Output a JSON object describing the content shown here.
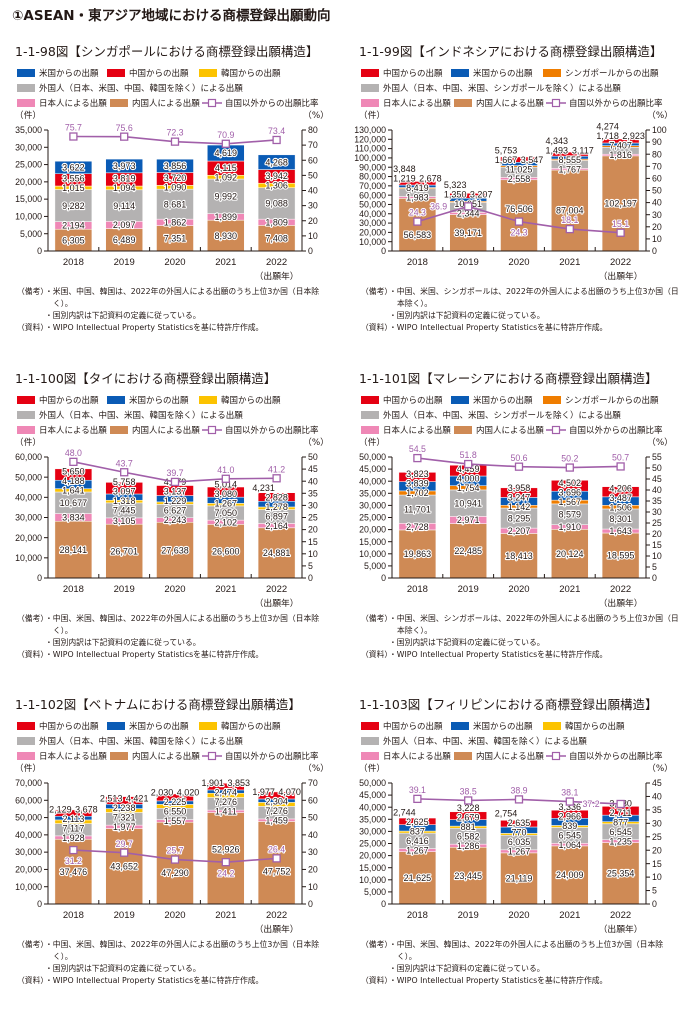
{
  "header": {
    "title": "①ASEAN・東アジア地域における商標登録出願動向"
  },
  "chart_data": [
    {
      "title": "1-1-98図【シンガポールにおける商標登録出願構造】",
      "type": "bar",
      "stacked": true,
      "categories": [
        "2018",
        "2019",
        "2020",
        "2021",
        "2022"
      ],
      "xlabel": "（出願年）",
      "ylabel_left": "（件）",
      "ylabel_right": "（%）",
      "ylim_left": [
        0,
        35000
      ],
      "ytick_step_left": 5000,
      "ylim_right": [
        0,
        80
      ],
      "ytick_step_right": 10,
      "series": [
        {
          "name": "米国からの出願",
          "color": "#0a5bb5",
          "values": [
            3622,
            3973,
            3856,
            4619,
            4268
          ]
        },
        {
          "name": "中国からの出願",
          "color": "#e50012",
          "values": [
            3556,
            3819,
            3720,
            4115,
            3942
          ]
        },
        {
          "name": "韓国からの出願",
          "color": "#fcc300",
          "values": [
            1015,
            1094,
            1090,
            1092,
            1306
          ]
        },
        {
          "name": "外国人（日本、米国、中国、韓国を除く）による出願",
          "color": "#b4b2b2",
          "values": [
            9282,
            9114,
            8681,
            9992,
            9088
          ]
        },
        {
          "name": "日本人による出願",
          "color": "#ef88b6",
          "values": [
            2194,
            2097,
            1862,
            1899,
            1809
          ]
        },
        {
          "name": "内国人による出願",
          "color": "#cf8a55",
          "values": [
            6305,
            6489,
            7351,
            8930,
            7408
          ]
        }
      ],
      "line": {
        "name": "自国以外からの出願比率",
        "color": "#a15fa9",
        "axis": "right",
        "values": [
          75.7,
          75.6,
          72.3,
          70.9,
          73.4
        ]
      },
      "legend": "top-left",
      "notes": [
        {
          "prefix": "（備考）",
          "text": "・米国、中国、韓国は、2022年の外国人による出願のうち上位3か国（日本除く）。"
        },
        {
          "prefix": "",
          "text": "・国別内訳は下記資料の定義に従っている。"
        },
        {
          "prefix": "（資料）",
          "text": "・WIPO Intellectual Property Statisticsを基に特許庁作成。"
        }
      ]
    },
    {
      "title": "1-1-99図【インドネシアにおける商標登録出願構造】",
      "type": "bar",
      "stacked": true,
      "categories": [
        "2018",
        "2019",
        "2020",
        "2021",
        "2022"
      ],
      "xlabel": "（出願年）",
      "ylabel_left": "（件）",
      "ylabel_right": "（%）",
      "ylim_left": [
        0,
        130000
      ],
      "ytick_step_left": 10000,
      "ylim_right": [
        0,
        100
      ],
      "ytick_step_right": 10,
      "series": [
        {
          "name": "中国からの出願",
          "color": "#e50012",
          "values": [
            3848,
            5323,
            5753,
            4343,
            4274
          ]
        },
        {
          "name": "米国からの出願",
          "color": "#0a5bb5",
          "values": [
            2678,
            3207,
            3547,
            3117,
            2923
          ]
        },
        {
          "name": "シンガポールからの出願",
          "color": "#ef7d00",
          "values": [
            1219,
            1350,
            1667,
            1493,
            1718
          ]
        },
        {
          "name": "外国人（日本、中国、米国、シンガポールを除く）による出願",
          "color": "#b4b2b2",
          "values": [
            8419,
            10651,
            11025,
            8555,
            7407
          ]
        },
        {
          "name": "日本人による出願",
          "color": "#ef88b6",
          "values": [
            1983,
            2344,
            2558,
            1767,
            1816
          ]
        },
        {
          "name": "内国人による出願",
          "color": "#cf8a55",
          "values": [
            56583,
            39171,
            76506,
            87004,
            102197
          ]
        }
      ],
      "line": {
        "name": "自国以外からの出願比率",
        "color": "#a15fa9",
        "axis": "right",
        "values": [
          24.3,
          36.9,
          24.3,
          18.1,
          15.1
        ]
      },
      "legend": "top-left",
      "notes": [
        {
          "prefix": "（備考）",
          "text": "・中国、米国、シンガポールは、2022年の外国人による出願のうち上位3か国（日本除く）。"
        },
        {
          "prefix": "",
          "text": "・国別内訳は下記資料の定義に従っている。"
        },
        {
          "prefix": "（資料）",
          "text": "・WIPO Intellectual Property Statisticsを基に特許庁作成。"
        }
      ]
    },
    {
      "title": "1-1-100図【タイにおける商標登録出願構造】",
      "type": "bar",
      "stacked": true,
      "categories": [
        "2018",
        "2019",
        "2020",
        "2021",
        "2022"
      ],
      "xlabel": "（出願年）",
      "ylabel_left": "（件）",
      "ylabel_right": "（%）",
      "ylim_left": [
        0,
        60000
      ],
      "ytick_step_left": 10000,
      "ylim_right": [
        0,
        50
      ],
      "ytick_step_right": 5,
      "series": [
        {
          "name": "中国からの出願",
          "color": "#e50012",
          "values": [
            5650,
            5758,
            4979,
            5014,
            4231
          ]
        },
        {
          "name": "米国からの出願",
          "color": "#0a5bb5",
          "values": [
            4188,
            3097,
            3137,
            3080,
            2828
          ]
        },
        {
          "name": "韓国からの出願",
          "color": "#fcc300",
          "values": [
            1641,
            1318,
            1229,
            1267,
            1278
          ]
        },
        {
          "name": "外国人（日本、中国、米国、韓国を除く）による出願",
          "color": "#b4b2b2",
          "values": [
            10677,
            7445,
            6627,
            7050,
            6897
          ]
        },
        {
          "name": "日本人による出願",
          "color": "#ef88b6",
          "values": [
            3834,
            3105,
            2243,
            2102,
            2164
          ]
        },
        {
          "name": "内国人による出願",
          "color": "#cf8a55",
          "values": [
            28141,
            26701,
            27638,
            26600,
            24881
          ]
        }
      ],
      "line": {
        "name": "自国以外からの出願比率",
        "color": "#a15fa9",
        "axis": "right",
        "values": [
          48.0,
          43.7,
          39.7,
          41.0,
          41.2
        ]
      },
      "legend": "top-left",
      "notes": [
        {
          "prefix": "（備考）",
          "text": "・中国、米国、韓国は、2022年の外国人による出願のうち上位3か国（日本除く）。"
        },
        {
          "prefix": "",
          "text": "・国別内訳は下記資料の定義に従っている。"
        },
        {
          "prefix": "（資料）",
          "text": "・WIPO Intellectual Property Statisticsを基に特許庁作成。"
        }
      ]
    },
    {
      "title": "1-1-101図【マレーシアにおける商標登録出願構造】",
      "type": "bar",
      "stacked": true,
      "categories": [
        "2018",
        "2019",
        "2020",
        "2021",
        "2022"
      ],
      "xlabel": "（出願年）",
      "ylabel_left": "（件）",
      "ylabel_right": "（%）",
      "ylim_left": [
        0,
        50000
      ],
      "ytick_step_left": 5000,
      "ylim_right": [
        0,
        55
      ],
      "ytick_step_right": 5,
      "series": [
        {
          "name": "中国からの出願",
          "color": "#e50012",
          "values": [
            3823,
            4459,
            3958,
            4502,
            4206
          ]
        },
        {
          "name": "米国からの出願",
          "color": "#0a5bb5",
          "values": [
            3839,
            4000,
            3247,
            3696,
            3487
          ]
        },
        {
          "name": "シンガポールからの出願",
          "color": "#ef7d00",
          "values": [
            1702,
            1754,
            1142,
            1567,
            1506
          ]
        },
        {
          "name": "外国人（日本、中国、米国、シンガポールを除く）による出願",
          "color": "#b4b2b2",
          "values": [
            11701,
            10941,
            8295,
            8579,
            8301
          ]
        },
        {
          "name": "日本人による出願",
          "color": "#ef88b6",
          "values": [
            2728,
            2971,
            2207,
            1910,
            1643
          ]
        },
        {
          "name": "内国人による出願",
          "color": "#cf8a55",
          "values": [
            19863,
            22485,
            18413,
            20124,
            18595
          ]
        }
      ],
      "line": {
        "name": "自国以外からの出願比率",
        "color": "#a15fa9",
        "axis": "right",
        "values": [
          54.5,
          51.8,
          50.6,
          50.2,
          50.7
        ]
      },
      "legend": "top-left",
      "notes": [
        {
          "prefix": "（備考）",
          "text": "・中国、米国、シンガポールは、2022年の外国人による出願のうち上位3か国（日本除く）。"
        },
        {
          "prefix": "",
          "text": "・国別内訳は下記資料の定義に従っている。"
        },
        {
          "prefix": "（資料）",
          "text": "・WIPO Intellectual Property Statisticsを基に特許庁作成。"
        }
      ]
    },
    {
      "title": "1-1-102図【ベトナムにおける商標登録出願構造】",
      "type": "bar",
      "stacked": true,
      "categories": [
        "2018",
        "2019",
        "2020",
        "2021",
        "2022"
      ],
      "xlabel": "（出願年）",
      "ylabel_left": "（件）",
      "ylabel_right": "（%）",
      "ylim_left": [
        0,
        70000
      ],
      "ytick_step_left": 10000,
      "ylim_right": [
        0,
        70
      ],
      "ytick_step_right": 10,
      "series": [
        {
          "name": "中国からの出願",
          "color": "#e50012",
          "values": [
            3678,
            4421,
            4020,
            3853,
            4070
          ]
        },
        {
          "name": "米国からの出願",
          "color": "#0a5bb5",
          "values": [
            2129,
            2513,
            2030,
            1901,
            1977
          ]
        },
        {
          "name": "韓国からの出願",
          "color": "#fcc300",
          "values": [
            2113,
            2238,
            2225,
            2474,
            2304
          ]
        },
        {
          "name": "外国人（日本、中国、米国、韓国を除く）による出願",
          "color": "#b4b2b2",
          "values": [
            7117,
            7321,
            6550,
            7276,
            7276
          ]
        },
        {
          "name": "日本人による出願",
          "color": "#ef88b6",
          "values": [
            1928,
            1977,
            1557,
            1411,
            1459
          ]
        },
        {
          "name": "内国人による出願",
          "color": "#cf8a55",
          "values": [
            37476,
            43652,
            47290,
            52926,
            47752
          ]
        }
      ],
      "line": {
        "name": "自国以外からの出願比率",
        "color": "#a15fa9",
        "axis": "right",
        "values": [
          31.2,
          29.7,
          25.7,
          24.2,
          26.4
        ]
      },
      "legend": "top-left",
      "notes": [
        {
          "prefix": "（備考）",
          "text": "・中国、米国、韓国は、2022年の外国人による出願のうち上位3か国（日本除く）。"
        },
        {
          "prefix": "",
          "text": "・国別内訳は下記資料の定義に従っている。"
        },
        {
          "prefix": "（資料）",
          "text": "・WIPO Intellectual Property Statisticsを基に特許庁作成。"
        }
      ]
    },
    {
      "title": "1-1-103図【フィリピンにおける商標登録出願構造】",
      "type": "bar",
      "stacked": true,
      "categories": [
        "2018",
        "2019",
        "2020",
        "2021",
        "2022"
      ],
      "xlabel": "（出願年）",
      "ylabel_left": "（件）",
      "ylabel_right": "（%）",
      "ylim_left": [
        0,
        50000
      ],
      "ytick_step_left": 5000,
      "ylim_right": [
        0,
        45
      ],
      "ytick_step_right": 5,
      "series": [
        {
          "name": "中国からの出願",
          "color": "#e50012",
          "values": [
            2744,
            3228,
            2754,
            3336,
            3630
          ]
        },
        {
          "name": "米国からの出願",
          "color": "#0a5bb5",
          "values": [
            2625,
            2679,
            2635,
            2966,
            2711
          ]
        },
        {
          "name": "韓国からの出願",
          "color": "#fcc300",
          "values": [
            837,
            881,
            770,
            839,
            877
          ]
        },
        {
          "name": "外国人（日本、中国、米国、韓国を除く）による出願",
          "color": "#b4b2b2",
          "values": [
            6416,
            6582,
            6035,
            6545,
            6545
          ]
        },
        {
          "name": "日本人による出願",
          "color": "#ef88b6",
          "values": [
            1267,
            1286,
            1267,
            1064,
            1235
          ]
        },
        {
          "name": "内国人による出願",
          "color": "#cf8a55",
          "values": [
            21625,
            23445,
            21119,
            24009,
            25354
          ]
        }
      ],
      "line": {
        "name": "自国以外からの出願比率",
        "color": "#a15fa9",
        "axis": "right",
        "values": [
          39.1,
          38.5,
          38.9,
          38.1,
          37.2
        ]
      },
      "legend": "top-left",
      "notes": [
        {
          "prefix": "（備考）",
          "text": "・中国、米国、韓国は、2022年の外国人による出願のうち上位3か国（日本除く）。"
        },
        {
          "prefix": "",
          "text": "・国別内訳は下記資料の定義に従っている。"
        },
        {
          "prefix": "（資料）",
          "text": "・WIPO Intellectual Property Statisticsを基に特許庁作成。"
        }
      ]
    }
  ]
}
